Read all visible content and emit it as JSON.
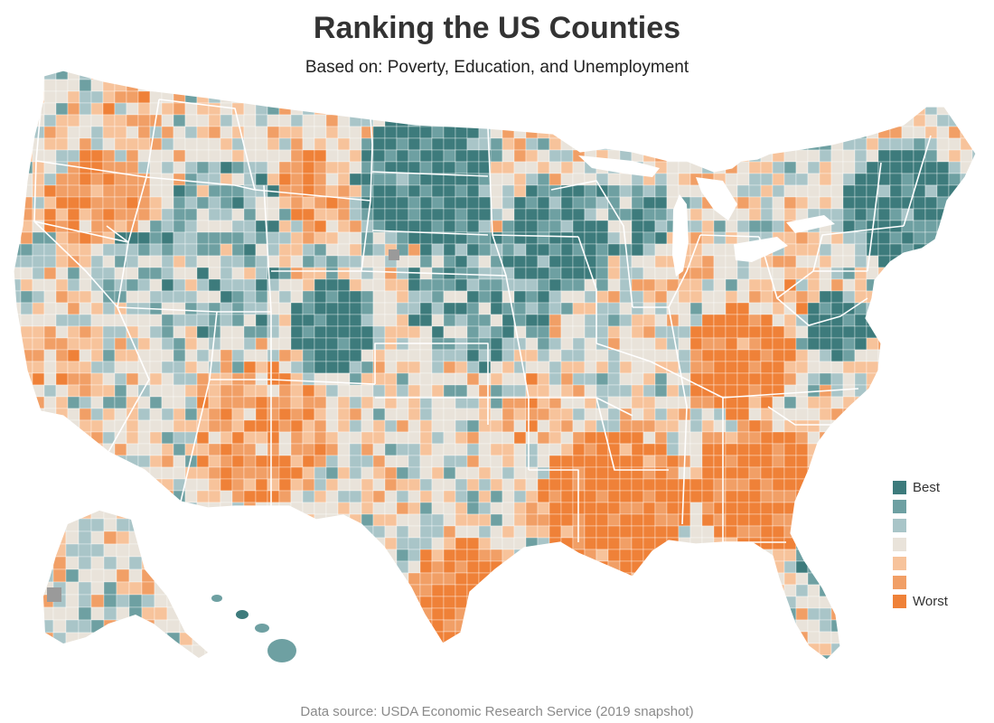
{
  "header": {
    "title": "Ranking the US Counties",
    "subtitle": "Based on: Poverty, Education, and Unemployment"
  },
  "footer": {
    "source": "Data source: USDA Economic Research Service (2019 snapshot)"
  },
  "legend": {
    "items": [
      {
        "label": "Best",
        "color": "#3d7b7c"
      },
      {
        "label": "",
        "color": "#6ea0a2"
      },
      {
        "label": "",
        "color": "#a9c5c8"
      },
      {
        "label": "",
        "color": "#e9e3da"
      },
      {
        "label": "",
        "color": "#f7c39b"
      },
      {
        "label": "",
        "color": "#f19f66"
      },
      {
        "label": "Worst",
        "color": "#ef8138"
      }
    ]
  },
  "map": {
    "no_data_color": "#9a9a9a",
    "state_border_color": "#ffffff",
    "background_color": "#ffffff"
  }
}
